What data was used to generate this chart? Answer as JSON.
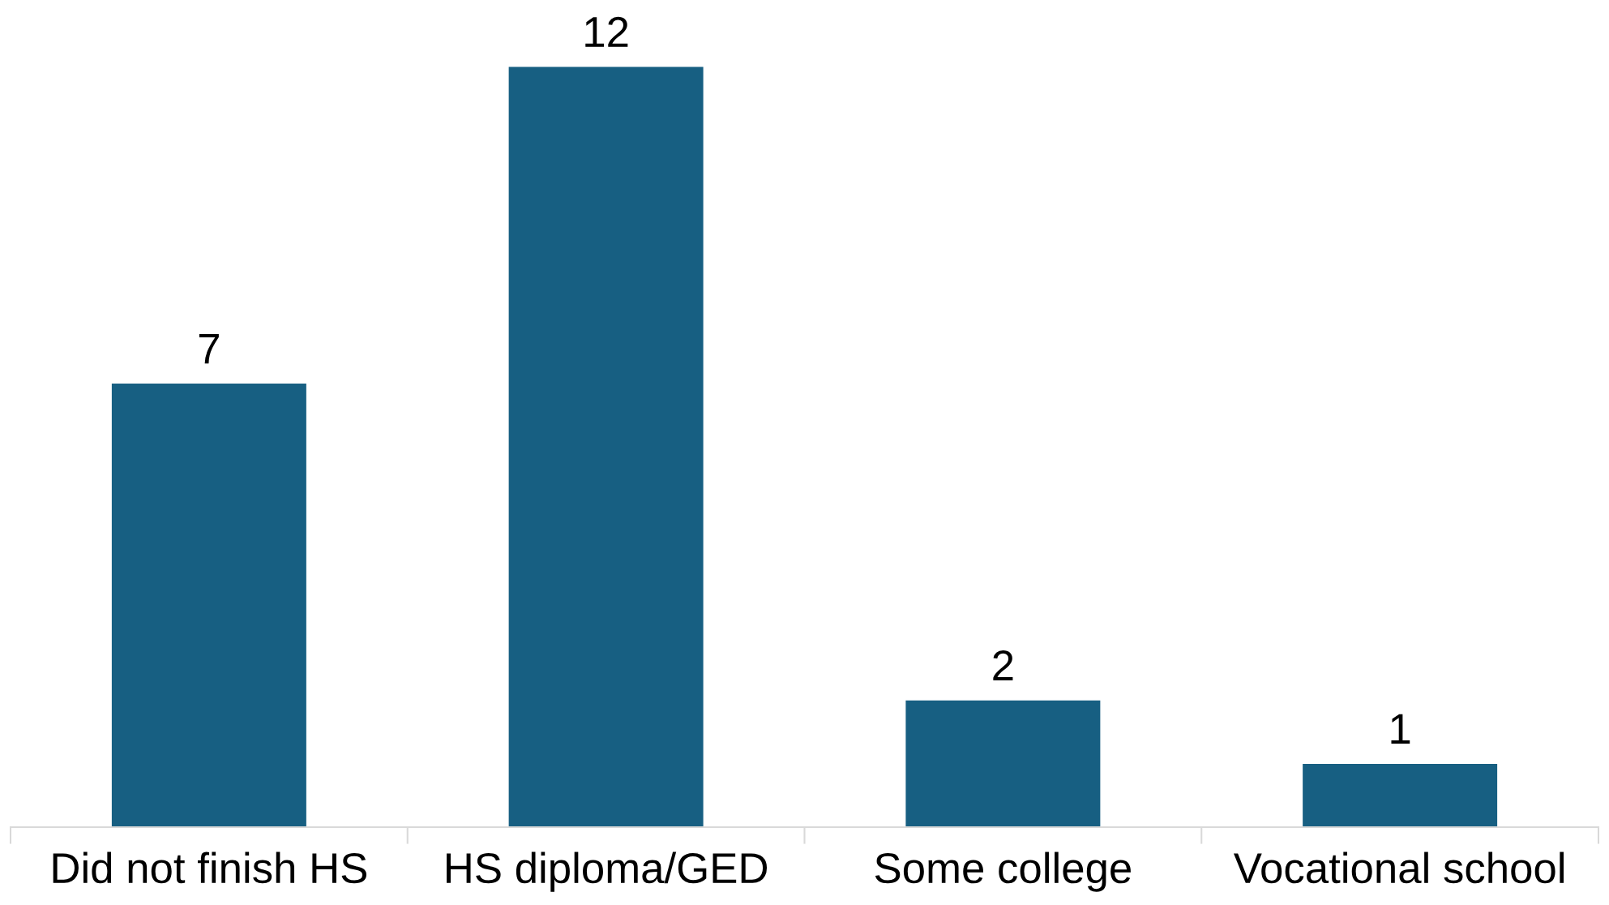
{
  "chart_data": {
    "type": "bar",
    "categories": [
      "Did not finish HS",
      "HS diploma/GED",
      "Some college",
      "Vocational school"
    ],
    "values": [
      7,
      12,
      2,
      1
    ],
    "color": "#175f82",
    "data_labels": true,
    "grid": false,
    "legend": false
  }
}
